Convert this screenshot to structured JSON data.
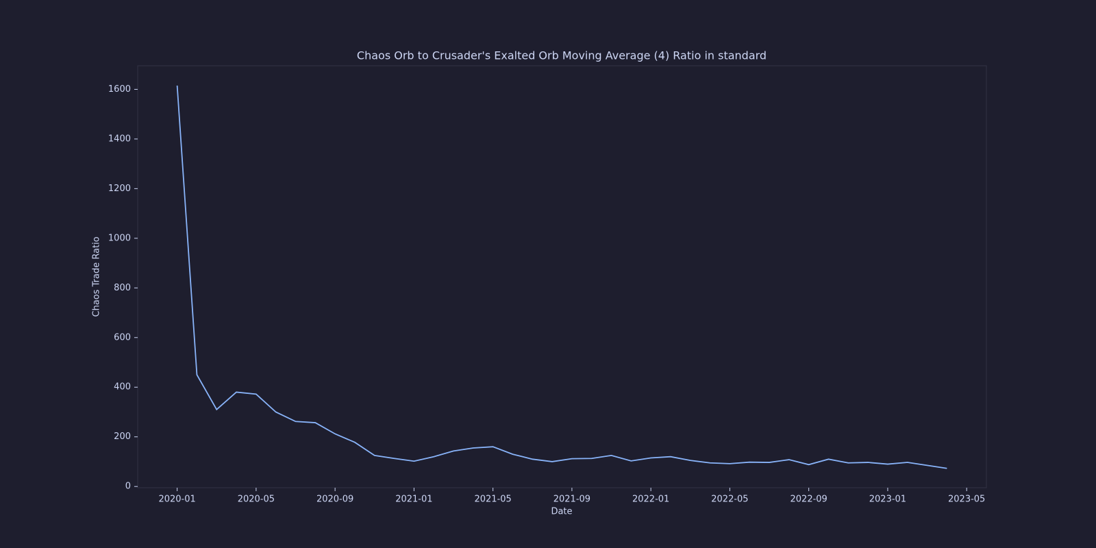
{
  "chart_data": {
    "type": "line",
    "title": "Chaos Orb to Crusader's Exalted Orb Moving Average (4) Ratio in standard",
    "xlabel": "Date",
    "ylabel": "Chaos Trade Ratio",
    "x": [
      "2020-01",
      "2020-02",
      "2020-03",
      "2020-04",
      "2020-05",
      "2020-06",
      "2020-07",
      "2020-08",
      "2020-09",
      "2020-10",
      "2020-11",
      "2020-12",
      "2021-01",
      "2021-02",
      "2021-03",
      "2021-04",
      "2021-05",
      "2021-06",
      "2021-07",
      "2021-08",
      "2021-09",
      "2021-10",
      "2021-11",
      "2021-12",
      "2022-01",
      "2022-02",
      "2022-03",
      "2022-04",
      "2022-05",
      "2022-06",
      "2022-07",
      "2022-08",
      "2022-09",
      "2022-10",
      "2022-11",
      "2022-12",
      "2023-01",
      "2023-02",
      "2023-03",
      "2023-04"
    ],
    "series": [
      {
        "name": "Chaos Trade Ratio",
        "color": "#89b4fa",
        "values": [
          1615,
          450,
          310,
          380,
          372,
          300,
          262,
          257,
          212,
          178,
          125,
          113,
          102,
          120,
          143,
          155,
          160,
          130,
          110,
          100,
          112,
          113,
          125,
          103,
          115,
          120,
          105,
          95,
          92,
          98,
          97,
          108,
          88,
          110,
          95,
          97,
          90,
          97,
          85,
          73
        ]
      }
    ],
    "xlim": [
      "2019-11",
      "2023-06"
    ],
    "xticks": [
      "2020-01",
      "2020-05",
      "2020-09",
      "2021-01",
      "2021-05",
      "2021-09",
      "2022-01",
      "2022-05",
      "2022-09",
      "2023-01",
      "2023-05"
    ],
    "ylim": [
      -5,
      1695
    ],
    "yticks": [
      0,
      200,
      400,
      600,
      800,
      1000,
      1200,
      1400,
      1600
    ],
    "grid": false
  }
}
